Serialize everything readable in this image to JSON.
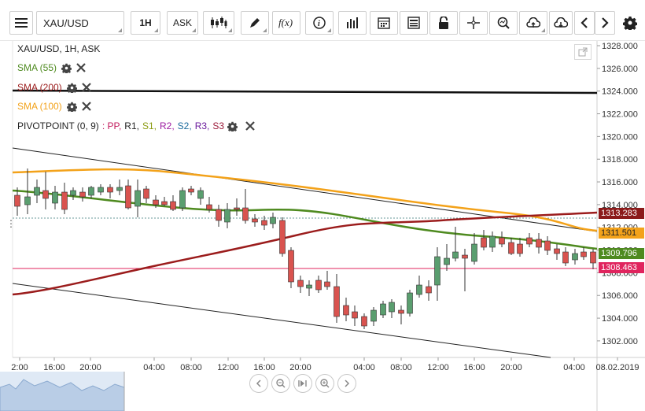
{
  "toolbar": {
    "symbol": "XAU/USD",
    "timeframe": "1H",
    "price_side": "ASK"
  },
  "chart": {
    "title": "XAU/USD, 1H, ASK",
    "indicators": [
      {
        "label": "SMA (55)",
        "color": "#4e8a1f"
      },
      {
        "label": "SMA (200)",
        "color": "#9b1c1c"
      },
      {
        "label": "SMA (100)",
        "color": "#f3a21a"
      }
    ],
    "pivot": {
      "label": "PIVOTPOINT (0, 9)",
      "items": [
        {
          "text": ": PP,",
          "color": "#c2185b"
        },
        {
          "text": "R1,",
          "color": "#222222"
        },
        {
          "text": "S1,",
          "color": "#8a9a10"
        },
        {
          "text": "R2,",
          "color": "#9c1aa0"
        },
        {
          "text": "S2,",
          "color": "#1a6a9c"
        },
        {
          "text": "R3,",
          "color": "#6a1a9c"
        },
        {
          "text": "S3",
          "color": "#9c1a3a"
        }
      ]
    },
    "y_ticks": [
      "1328.000",
      "1326.000",
      "1324.000",
      "1322.000",
      "1320.000",
      "1318.000",
      "1316.000",
      "1314.000",
      "1312.000",
      "1310.000",
      "1308.000",
      "1306.000",
      "1304.000",
      "1302.000"
    ],
    "x_ticks": [
      "2:00",
      "16:00",
      "20:00",
      "04:00",
      "08:00",
      "12:00",
      "16:00",
      "20:00",
      "04:00",
      "08:00",
      "12:00",
      "16:00",
      "20:00",
      "04:00",
      "08.02.2019"
    ],
    "price_tags": [
      {
        "value": "1313.283",
        "color": "#8b1a1a"
      },
      {
        "value": "1311.501",
        "color": "#f3a21a"
      },
      {
        "value": "1309.796",
        "color": "#4e8a1f"
      },
      {
        "value": "1308.463",
        "color": "#e0245e"
      }
    ],
    "colors": {
      "up": "#5a9e6f",
      "down": "#d9534f",
      "bg": "#ffffff"
    }
  }
}
